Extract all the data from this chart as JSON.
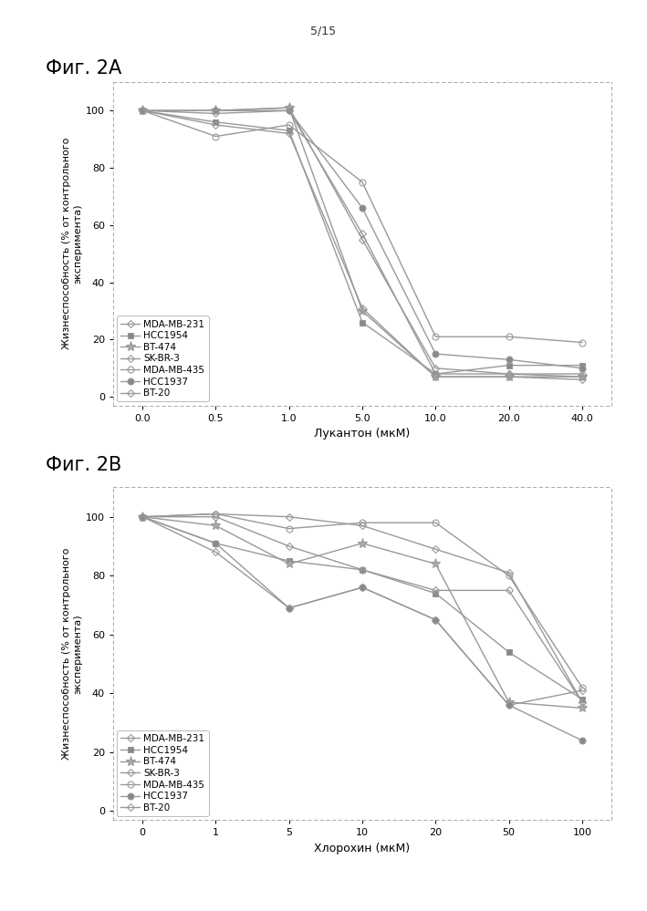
{
  "page_label": "5/15",
  "fig2A_title": "Фиг. 2А",
  "fig2B_title": "Фиг. 2В",
  "ylabel": "Жизнеспособность (% от контрольного\nэксперимента)",
  "xlabel_A": "Лукантон (мкМ)",
  "xlabel_B": "Хлорохин (мкМ)",
  "legend_labels": [
    "MDA-MB-231",
    "HCC1954",
    "BT-474",
    "SK-BR-3",
    "MDA-MB-435",
    "HCC1937",
    "BT-20"
  ],
  "xtick_labels_A": [
    "0.0",
    "0.5",
    "1.0",
    "5.0",
    "10.0",
    "20.0",
    "40.0"
  ],
  "xtick_labels_B": [
    "0",
    "1",
    "5",
    "10",
    "20",
    "50",
    "100"
  ],
  "yticks": [
    0,
    20,
    40,
    60,
    80,
    100
  ],
  "ylim": [
    -3,
    110
  ],
  "data_A": {
    "MDA-MB-231": [
      100,
      99,
      100,
      57,
      8,
      8,
      8
    ],
    "HCC1954": [
      100,
      96,
      93,
      26,
      8,
      11,
      11
    ],
    "BT-474": [
      100,
      100,
      101,
      30,
      7,
      7,
      7
    ],
    "SK-BR-3": [
      100,
      95,
      92,
      31,
      7,
      7,
      6
    ],
    "MDA-MB-435": [
      100,
      91,
      95,
      75,
      21,
      21,
      19
    ],
    "HCC1937": [
      100,
      100,
      100,
      66,
      15,
      13,
      10
    ],
    "BT-20": [
      100,
      100,
      101,
      55,
      10,
      8,
      7
    ]
  },
  "data_B": {
    "MDA-MB-231": [
      100,
      88,
      69,
      76,
      65,
      36,
      41
    ],
    "HCC1954": [
      100,
      91,
      85,
      82,
      74,
      54,
      38
    ],
    "BT-474": [
      100,
      97,
      84,
      91,
      84,
      37,
      35
    ],
    "SK-BR-3": [
      100,
      100,
      90,
      82,
      75,
      75,
      37
    ],
    "MDA-MB-435": [
      100,
      101,
      96,
      98,
      98,
      80,
      42
    ],
    "HCC1937": [
      100,
      91,
      69,
      76,
      65,
      36,
      24
    ],
    "BT-20": [
      100,
      101,
      100,
      97,
      89,
      81,
      37
    ]
  },
  "line_color": "#999999",
  "markers": [
    "D",
    "s",
    "*",
    "D",
    "o",
    "o",
    "D"
  ],
  "marker_sizes": [
    4,
    5,
    8,
    4,
    5,
    5,
    4
  ],
  "line_styles": [
    "-",
    "-",
    "-",
    "-",
    "-",
    "-",
    "-"
  ],
  "marker_facecolors": [
    "none",
    "#888888",
    "#aaaaaa",
    "none",
    "none",
    "#888888",
    "none"
  ]
}
